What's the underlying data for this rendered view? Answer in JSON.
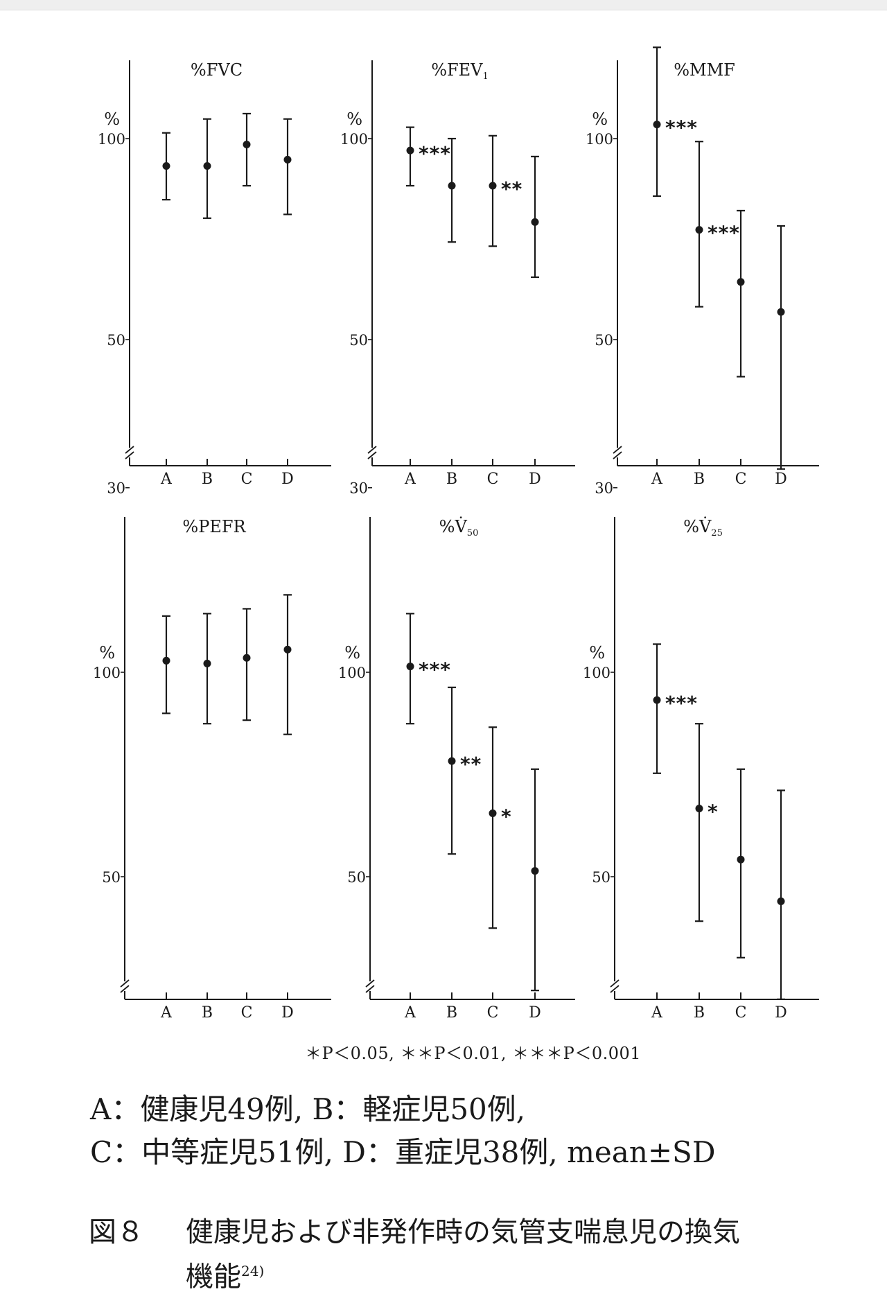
{
  "chart_data": [
    {
      "type": "errorbar",
      "title": "%FVC",
      "ylabel": "%",
      "y_scale": "log",
      "ylim": [
        26,
        150
      ],
      "yticks": [
        100,
        50,
        30
      ],
      "categories": [
        "A",
        "B",
        "C",
        "D"
      ],
      "mean": [
        91,
        91,
        98,
        93
      ],
      "sd_low": [
        81,
        76,
        85,
        77
      ],
      "sd_high": [
        102,
        107,
        109,
        107
      ],
      "significance": []
    },
    {
      "type": "errorbar",
      "title": "%FEV",
      "title_sub": "1",
      "ylabel": "%",
      "y_scale": "log",
      "ylim": [
        26,
        150
      ],
      "yticks": [
        100,
        50,
        30
      ],
      "categories": [
        "A",
        "B",
        "C",
        "D"
      ],
      "mean": [
        96,
        85,
        85,
        75
      ],
      "sd_low": [
        85,
        70,
        69,
        62
      ],
      "sd_high": [
        104,
        100,
        101,
        94
      ],
      "significance": [
        {
          "between": [
            0,
            1
          ],
          "stars": "***"
        },
        {
          "between": [
            2,
            3
          ],
          "stars": "**"
        }
      ]
    },
    {
      "type": "errorbar",
      "title": "%MMF",
      "ylabel": "%",
      "y_scale": "log",
      "ylim": [
        26,
        150
      ],
      "yticks": [
        100,
        50,
        30
      ],
      "categories": [
        "A",
        "B",
        "C",
        "D"
      ],
      "mean": [
        105,
        73,
        61,
        55
      ],
      "sd_low": [
        82,
        56,
        44,
        32
      ],
      "sd_high": [
        137,
        99,
        78,
        74
      ],
      "significance": [
        {
          "between": [
            0,
            1
          ],
          "stars": "***"
        },
        {
          "between": [
            1,
            2
          ],
          "stars": "***"
        }
      ]
    },
    {
      "type": "errorbar",
      "title": "%PEFR",
      "ylabel": "%",
      "y_scale": "log",
      "ylim": [
        32,
        150
      ],
      "yticks": [
        100,
        50
      ],
      "categories": [
        "A",
        "B",
        "C",
        "D"
      ],
      "mean": [
        104,
        103,
        105,
        108
      ],
      "sd_low": [
        87,
        84,
        85,
        81
      ],
      "sd_high": [
        121,
        122,
        124,
        130
      ],
      "significance": []
    },
    {
      "type": "errorbar",
      "title": "%V̇",
      "title_sub": "50",
      "ylabel": "%",
      "y_scale": "log",
      "ylim": [
        32,
        150
      ],
      "yticks": [
        100,
        50
      ],
      "categories": [
        "A",
        "B",
        "C",
        "D"
      ],
      "mean": [
        102,
        74,
        62,
        51
      ],
      "sd_low": [
        84,
        54,
        42,
        34
      ],
      "sd_high": [
        122,
        95,
        83,
        72
      ],
      "significance": [
        {
          "between": [
            0,
            1
          ],
          "stars": "***"
        },
        {
          "between": [
            1,
            2
          ],
          "stars": "**"
        },
        {
          "between": [
            2,
            3
          ],
          "stars": "*"
        }
      ]
    },
    {
      "type": "errorbar",
      "title": "%V̇",
      "title_sub": "25",
      "ylabel": "%",
      "y_scale": "log",
      "ylim": [
        32,
        150
      ],
      "yticks": [
        100,
        50
      ],
      "categories": [
        "A",
        "B",
        "C",
        "D"
      ],
      "mean": [
        91,
        63,
        53,
        46
      ],
      "sd_low": [
        71,
        43,
        38,
        33
      ],
      "sd_high": [
        110,
        84,
        72,
        67
      ],
      "significance": [
        {
          "between": [
            0,
            1
          ],
          "stars": "***"
        },
        {
          "between": [
            1,
            2
          ],
          "stars": "*"
        }
      ]
    }
  ],
  "significance_note": "＊P＜0.05,  ＊＊P＜0.01,  ＊＊＊P＜0.001",
  "legend": {
    "line1": "A：健康児49例,  B：軽症児50例,",
    "line2": "C：中等症児51例,  D：重症児38例,  mean±SD"
  },
  "caption": {
    "number": "図８",
    "line1": "健康児および非発作時の気管支喘息児の換気",
    "line2": "機能",
    "ref": "24)"
  }
}
